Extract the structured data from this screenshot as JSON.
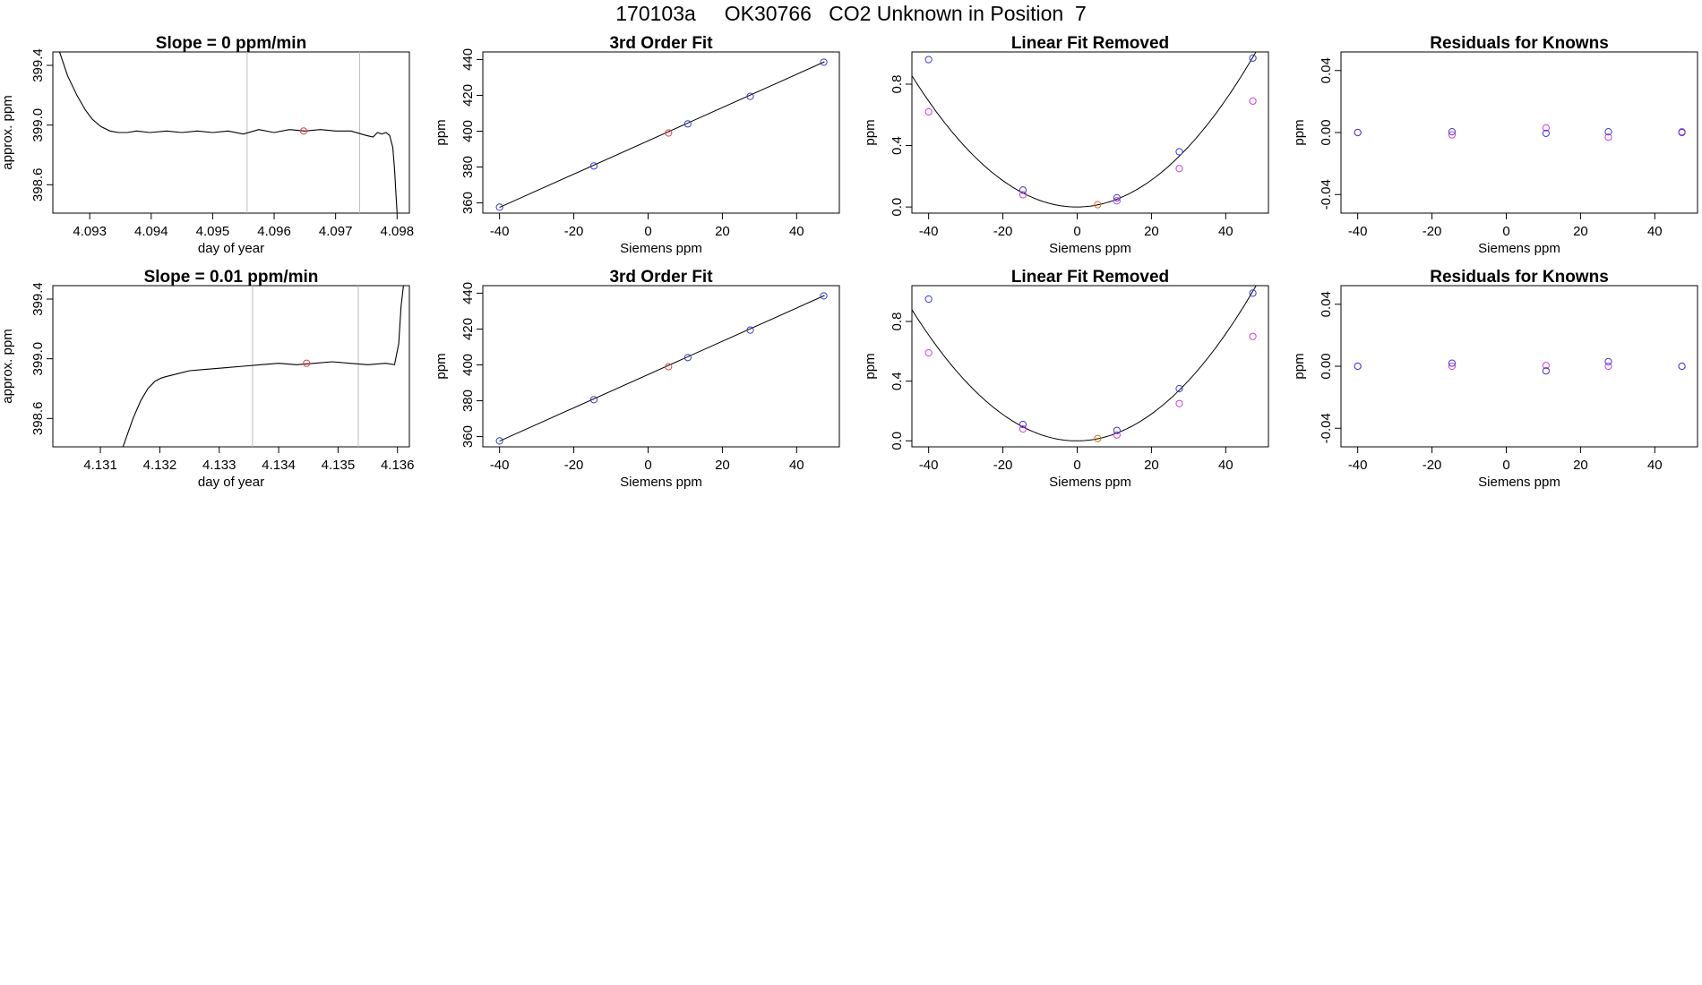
{
  "figure_title": "170103a     OK30766   CO2 Unknown in Position  7",
  "chart_data": [
    {
      "type": "line",
      "id": "r1c1",
      "title": "Slope =  0  ppm/min",
      "xlabel": "day of year",
      "ylabel": "approx. ppm",
      "xlim": [
        4.0924,
        4.0982
      ],
      "ylim": [
        398.41,
        399.49
      ],
      "xticks": [
        "4.093",
        "4.094",
        "4.095",
        "4.096",
        "4.097",
        "4.098"
      ],
      "yticks": [
        "398.6",
        "399.0",
        "399.4"
      ],
      "vlines": [
        4.09556,
        4.09739
      ],
      "line_color": "#000000",
      "marker_color": "#e8403a",
      "marker": {
        "x": 4.09648,
        "y": 398.96
      },
      "series_x": [
        4.0925,
        4.09264,
        4.09279,
        4.09293,
        4.09304,
        4.09318,
        4.09333,
        4.09347,
        4.09361,
        4.09376,
        4.09398,
        4.09425,
        4.0945,
        4.09475,
        4.095,
        4.09525,
        4.0955,
        4.09575,
        4.096,
        4.09625,
        4.0965,
        4.09675,
        4.097,
        4.09725,
        4.0975,
        4.09761,
        4.09768,
        4.09775,
        4.09782,
        4.09788,
        4.09793,
        4.09796,
        4.09798,
        4.098
      ],
      "series_y": [
        399.5,
        399.33,
        399.2,
        399.1,
        399.04,
        398.99,
        398.96,
        398.95,
        398.95,
        398.96,
        398.95,
        398.96,
        398.95,
        398.96,
        398.95,
        398.96,
        398.94,
        398.97,
        398.95,
        398.97,
        398.96,
        398.97,
        398.96,
        398.96,
        398.93,
        398.92,
        398.95,
        398.94,
        398.95,
        398.93,
        398.85,
        398.7,
        398.55,
        398.41
      ]
    },
    {
      "type": "scatter",
      "id": "r1c2",
      "title": "3rd Order Fit",
      "xlabel": "Siemens ppm",
      "ylabel": "ppm",
      "xlim": [
        -44.5,
        51.5
      ],
      "ylim": [
        354.3,
        444.2
      ],
      "xticks": [
        -40,
        -20,
        0,
        20,
        40
      ],
      "yticks": [
        360,
        380,
        400,
        420,
        440
      ],
      "fit_line": [
        [
          -40,
          357.5
        ],
        [
          47.5,
          438.7
        ]
      ],
      "known_points": {
        "color": "#3b3bd6",
        "x": [
          -40,
          -14.6,
          10.7,
          27.5,
          47.3
        ],
        "y": [
          357.6,
          380.6,
          404.1,
          419.4,
          438.5
        ]
      },
      "unknown_point": {
        "color": "#e8403a",
        "x": 5.5,
        "y": 399.0
      }
    },
    {
      "type": "scatter",
      "id": "r1c3",
      "title": "Linear Fit Removed",
      "xlabel": "Siemens ppm",
      "ylabel": "ppm",
      "xlim": [
        -44.5,
        51.5
      ],
      "ylim": [
        -0.04,
        1.01
      ],
      "xticks": [
        -40,
        -20,
        0,
        20,
        40
      ],
      "yticks": [
        "0.0",
        "0.4",
        "0.8"
      ],
      "curve": {
        "a": 0.000434,
        "b": 0.0001,
        "c": 0.0
      },
      "known_points": {
        "color": "#3b3bd6",
        "x": [
          -40,
          -14.6,
          10.7,
          27.5,
          47.3
        ],
        "y": [
          0.96,
          0.11,
          0.06,
          0.36,
          0.97
        ]
      },
      "magenta_points": {
        "color": "#d63bd6",
        "x": [
          -40,
          -14.6,
          10.7,
          27.5,
          47.3
        ],
        "y": [
          0.62,
          0.08,
          0.04,
          0.25,
          0.69
        ]
      },
      "unknown_point": {
        "color": "#e07010",
        "x": 5.5,
        "y": 0.015
      }
    },
    {
      "type": "scatter",
      "id": "r1c4",
      "title": "Residuals for Knowns",
      "xlabel": "Siemens ppm",
      "ylabel": "ppm",
      "xlim": [
        -44.5,
        51.5
      ],
      "ylim": [
        -0.052,
        0.052
      ],
      "xticks": [
        -40,
        -20,
        0,
        20,
        40
      ],
      "yticks": [
        "-0.04",
        "0.00",
        "0.04"
      ],
      "known_points": {
        "color": "#3b3bd6",
        "x": [
          -40,
          -14.6,
          10.7,
          27.5,
          47.3
        ],
        "y": [
          0.0,
          0.0005,
          -0.0005,
          0.0005,
          0.0
        ]
      },
      "magenta_points": {
        "color": "#d63bd6",
        "x": [
          -40,
          -14.6,
          10.7,
          27.5,
          47.3
        ],
        "y": [
          0.0,
          -0.0015,
          0.003,
          -0.003,
          0.0005
        ]
      }
    },
    {
      "type": "line",
      "id": "r2c1",
      "title": "Slope =  0.01  ppm/min",
      "xlabel": "day of year",
      "ylabel": "approx. ppm",
      "xlim": [
        4.1302,
        4.1362
      ],
      "ylim": [
        398.41,
        399.49
      ],
      "xticks": [
        "4.131",
        "4.132",
        "4.133",
        "4.134",
        "4.135",
        "4.136"
      ],
      "yticks": [
        "398.6",
        "399.0",
        "399.4"
      ],
      "vlines": [
        4.13356,
        4.13534
      ],
      "line_color": "#000000",
      "marker_color": "#e8403a",
      "marker": {
        "x": 4.13447,
        "y": 398.97
      },
      "series_x": [
        4.13138,
        4.13155,
        4.13168,
        4.1318,
        4.13192,
        4.13202,
        4.1321,
        4.1323,
        4.1325,
        4.1328,
        4.1331,
        4.1334,
        4.1337,
        4.134,
        4.1343,
        4.1346,
        4.1349,
        4.1352,
        4.1355,
        4.1358,
        4.13595,
        4.13602,
        4.13606,
        4.1361
      ],
      "series_y": [
        398.41,
        398.6,
        398.72,
        398.8,
        398.85,
        398.87,
        398.88,
        398.9,
        398.92,
        398.93,
        398.94,
        398.95,
        398.96,
        398.97,
        398.96,
        398.97,
        398.98,
        398.97,
        398.96,
        398.97,
        398.96,
        399.1,
        399.35,
        399.49
      ]
    },
    {
      "type": "scatter",
      "id": "r2c2",
      "title": "3rd Order Fit",
      "xlabel": "Siemens ppm",
      "ylabel": "ppm",
      "xlim": [
        -44.5,
        51.5
      ],
      "ylim": [
        354.3,
        444.2
      ],
      "xticks": [
        -40,
        -20,
        0,
        20,
        40
      ],
      "yticks": [
        360,
        380,
        400,
        420,
        440
      ],
      "fit_line": [
        [
          -40,
          357.5
        ],
        [
          47.5,
          438.7
        ]
      ],
      "known_points": {
        "color": "#3b3bd6",
        "x": [
          -40,
          -14.6,
          10.7,
          27.5,
          47.3
        ],
        "y": [
          357.6,
          380.6,
          404.1,
          419.4,
          438.5
        ]
      },
      "unknown_point": {
        "color": "#e8403a",
        "x": 5.5,
        "y": 399.0
      }
    },
    {
      "type": "scatter",
      "id": "r2c3",
      "title": "Linear Fit Removed",
      "xlabel": "Siemens ppm",
      "ylabel": "ppm",
      "xlim": [
        -44.5,
        51.5
      ],
      "ylim": [
        -0.04,
        1.04
      ],
      "xticks": [
        -40,
        -20,
        0,
        20,
        40
      ],
      "yticks": [
        "0.0",
        "0.4",
        "0.8"
      ],
      "curve": {
        "a": 0.000446,
        "b": 0.0001,
        "c": 0.0
      },
      "known_points": {
        "color": "#3b3bd6",
        "x": [
          -40,
          -14.6,
          10.7,
          27.5,
          47.3
        ],
        "y": [
          0.95,
          0.11,
          0.07,
          0.35,
          0.99
        ]
      },
      "magenta_points": {
        "color": "#d63bd6",
        "x": [
          -40,
          -14.6,
          10.7,
          27.5,
          47.3
        ],
        "y": [
          0.59,
          0.08,
          0.04,
          0.25,
          0.7
        ]
      },
      "unknown_point": {
        "color": "#e07010",
        "x": 5.5,
        "y": 0.015
      }
    },
    {
      "type": "scatter",
      "id": "r2c4",
      "title": "Residuals for Knowns",
      "xlabel": "Siemens ppm",
      "ylabel": "ppm",
      "xlim": [
        -44.5,
        51.5
      ],
      "ylim": [
        -0.052,
        0.052
      ],
      "xticks": [
        -40,
        -20,
        0,
        20,
        40
      ],
      "yticks": [
        "-0.04",
        "0.00",
        "0.04"
      ],
      "known_points": {
        "color": "#3b3bd6",
        "x": [
          -40,
          -14.6,
          10.7,
          27.5,
          47.3
        ],
        "y": [
          0.0,
          0.002,
          -0.003,
          0.003,
          0.0
        ]
      },
      "magenta_points": {
        "color": "#d63bd6",
        "x": [
          -40,
          -14.6,
          10.7,
          27.5,
          47.3
        ],
        "y": [
          0.0,
          0.0,
          0.0005,
          0.0,
          0.0
        ]
      }
    }
  ]
}
